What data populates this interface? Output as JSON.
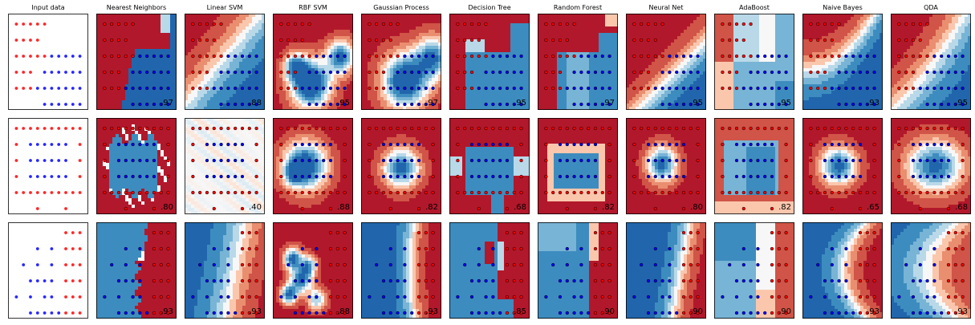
{
  "figure": {
    "columns": [
      "Input data",
      "Nearest Neighbors",
      "Linear SVM",
      "RBF SVM",
      "Gaussian Process",
      "Decision Tree",
      "Random Forest",
      "Neural Net",
      "AdaBoost",
      "Naive Bayes",
      "QDA"
    ]
  },
  "colors": {
    "red": "#b2182b",
    "blue": "#2166ac",
    "mid": "#f7f7f7",
    "point_red": "#ff0000",
    "point_blue": "#0000ff"
  },
  "chart_data": [
    {
      "type": "scatter",
      "dataset": "moons",
      "title": "",
      "xlim": [
        0,
        1
      ],
      "ylim": [
        0,
        1
      ],
      "grid": false,
      "scores": [
        ".97",
        ".88",
        ".95",
        ".97",
        ".95",
        ".97",
        ".95",
        ".95",
        ".93",
        ".95"
      ],
      "red_points": [
        [
          0.05,
          0.95
        ],
        [
          0.15,
          0.95
        ],
        [
          0.25,
          0.95
        ],
        [
          0.35,
          0.95
        ],
        [
          0.45,
          0.95
        ],
        [
          0.05,
          0.75
        ],
        [
          0.15,
          0.75
        ],
        [
          0.25,
          0.75
        ],
        [
          0.35,
          0.75
        ],
        [
          0.05,
          0.55
        ],
        [
          0.15,
          0.55
        ],
        [
          0.25,
          0.55
        ],
        [
          0.35,
          0.55
        ],
        [
          0.45,
          0.55
        ],
        [
          0.05,
          0.35
        ],
        [
          0.15,
          0.35
        ],
        [
          0.25,
          0.35
        ],
        [
          0.05,
          0.15
        ],
        [
          0.15,
          0.15
        ],
        [
          0.25,
          0.15
        ]
      ],
      "blue_points": [
        [
          0.55,
          0.55
        ],
        [
          0.65,
          0.55
        ],
        [
          0.75,
          0.55
        ],
        [
          0.85,
          0.55
        ],
        [
          0.95,
          0.55
        ],
        [
          0.45,
          0.35
        ],
        [
          0.55,
          0.35
        ],
        [
          0.65,
          0.35
        ],
        [
          0.75,
          0.35
        ],
        [
          0.85,
          0.35
        ],
        [
          0.95,
          0.35
        ],
        [
          0.35,
          0.15
        ],
        [
          0.45,
          0.15
        ],
        [
          0.55,
          0.15
        ],
        [
          0.65,
          0.15
        ],
        [
          0.75,
          0.15
        ],
        [
          0.85,
          0.15
        ],
        [
          0.95,
          0.15
        ],
        [
          0.45,
          -0.05
        ],
        [
          0.55,
          -0.05
        ],
        [
          0.65,
          -0.05
        ],
        [
          0.75,
          -0.05
        ],
        [
          0.85,
          -0.05
        ],
        [
          0.95,
          -0.05
        ]
      ]
    },
    {
      "type": "scatter",
      "dataset": "circles",
      "title": "",
      "xlim": [
        0,
        1
      ],
      "ylim": [
        0,
        1
      ],
      "grid": false,
      "scores": [
        ".80",
        ".40",
        ".88",
        ".82",
        ".68",
        ".82",
        ".80",
        ".82",
        ".65",
        ".68"
      ],
      "red_points": [
        [
          0.05,
          0.95
        ],
        [
          0.15,
          0.95
        ],
        [
          0.25,
          0.95
        ],
        [
          0.35,
          0.95
        ],
        [
          0.45,
          0.95
        ],
        [
          0.55,
          0.95
        ],
        [
          0.65,
          0.95
        ],
        [
          0.75,
          0.95
        ],
        [
          0.85,
          0.95
        ],
        [
          0.95,
          0.95
        ],
        [
          0.05,
          0.75
        ],
        [
          0.95,
          0.75
        ],
        [
          0.05,
          0.55
        ],
        [
          0.95,
          0.55
        ],
        [
          0.05,
          0.35
        ],
        [
          0.95,
          0.35
        ],
        [
          0.05,
          0.15
        ],
        [
          0.15,
          0.15
        ],
        [
          0.25,
          0.15
        ],
        [
          0.35,
          0.15
        ],
        [
          0.45,
          0.15
        ],
        [
          0.55,
          0.15
        ],
        [
          0.65,
          0.15
        ],
        [
          0.75,
          0.15
        ],
        [
          0.85,
          0.15
        ],
        [
          0.95,
          0.15
        ],
        [
          0.35,
          -0.05
        ],
        [
          0.75,
          -0.05
        ]
      ],
      "blue_points": [
        [
          0.25,
          0.75
        ],
        [
          0.35,
          0.75
        ],
        [
          0.45,
          0.75
        ],
        [
          0.55,
          0.75
        ],
        [
          0.65,
          0.75
        ],
        [
          0.75,
          0.75
        ],
        [
          0.25,
          0.55
        ],
        [
          0.35,
          0.55
        ],
        [
          0.45,
          0.55
        ],
        [
          0.55,
          0.55
        ],
        [
          0.65,
          0.55
        ],
        [
          0.75,
          0.55
        ],
        [
          0.25,
          0.35
        ],
        [
          0.35,
          0.35
        ],
        [
          0.45,
          0.35
        ],
        [
          0.55,
          0.35
        ],
        [
          0.65,
          0.35
        ],
        [
          0.75,
          0.35
        ]
      ]
    },
    {
      "type": "scatter",
      "dataset": "linearly separable",
      "title": "",
      "xlim": [
        0,
        1
      ],
      "ylim": [
        0,
        1
      ],
      "grid": false,
      "scores": [
        ".93",
        ".93",
        ".88",
        ".93",
        ".85",
        ".90",
        ".90",
        ".90",
        ".93",
        ".93"
      ],
      "red_points": [
        [
          0.75,
          0.95
        ],
        [
          0.85,
          0.95
        ],
        [
          0.95,
          0.95
        ],
        [
          0.75,
          0.75
        ],
        [
          0.85,
          0.75
        ],
        [
          0.95,
          0.75
        ],
        [
          0.75,
          0.55
        ],
        [
          0.85,
          0.55
        ],
        [
          0.95,
          0.55
        ],
        [
          0.75,
          0.35
        ],
        [
          0.85,
          0.35
        ],
        [
          0.95,
          0.35
        ],
        [
          0.75,
          0.15
        ],
        [
          0.85,
          0.15
        ],
        [
          0.95,
          0.15
        ],
        [
          0.75,
          -0.05
        ],
        [
          0.85,
          -0.05
        ],
        [
          0.95,
          -0.05
        ]
      ],
      "blue_points": [
        [
          0.35,
          0.75
        ],
        [
          0.55,
          0.75
        ],
        [
          0.15,
          0.55
        ],
        [
          0.35,
          0.55
        ],
        [
          0.55,
          0.55
        ],
        [
          0.25,
          0.35
        ],
        [
          0.35,
          0.35
        ],
        [
          0.45,
          0.35
        ],
        [
          0.55,
          0.35
        ],
        [
          0.05,
          0.15
        ],
        [
          0.25,
          0.15
        ],
        [
          0.45,
          0.15
        ],
        [
          0.55,
          0.15
        ],
        [
          0.25,
          -0.05
        ],
        [
          0.35,
          -0.05
        ],
        [
          0.45,
          -0.05
        ],
        [
          0.55,
          -0.05
        ],
        [
          0.65,
          -0.05
        ]
      ]
    }
  ]
}
